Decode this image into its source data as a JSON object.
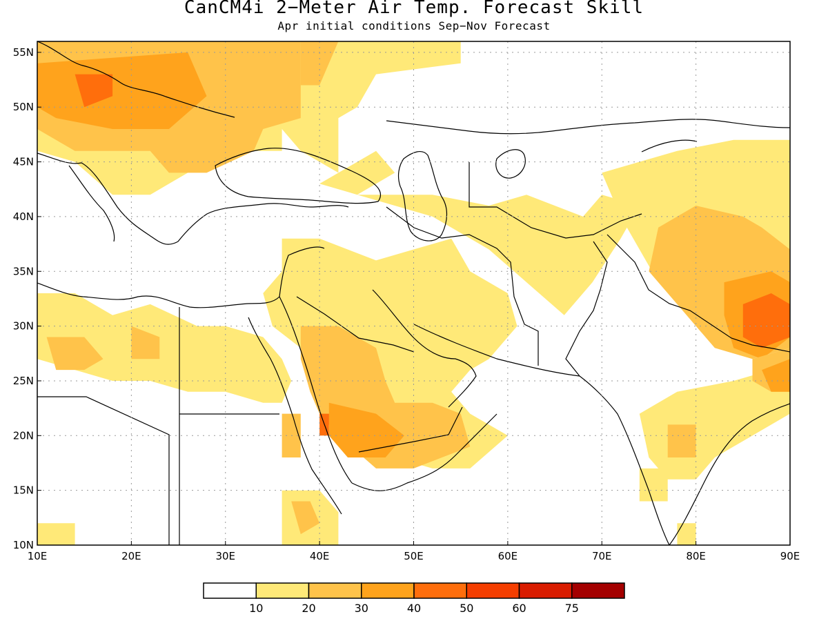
{
  "title": "CanCM4i 2−Meter Air Temp. Forecast Skill",
  "subtitle": "Apr initial conditions  Sep−Nov Forecast",
  "map": {
    "lon_range": [
      10,
      90
    ],
    "lat_range": [
      10,
      56
    ],
    "lon_ticks": [
      {
        "value": 10,
        "label": "10E"
      },
      {
        "value": 20,
        "label": "20E"
      },
      {
        "value": 30,
        "label": "30E"
      },
      {
        "value": 40,
        "label": "40E"
      },
      {
        "value": 50,
        "label": "50E"
      },
      {
        "value": 60,
        "label": "60E"
      },
      {
        "value": 70,
        "label": "70E"
      },
      {
        "value": 80,
        "label": "80E"
      },
      {
        "value": 90,
        "label": "90E"
      }
    ],
    "lat_ticks": [
      {
        "value": 10,
        "label": "10N"
      },
      {
        "value": 15,
        "label": "15N"
      },
      {
        "value": 20,
        "label": "20N"
      },
      {
        "value": 25,
        "label": "25N"
      },
      {
        "value": 30,
        "label": "30N"
      },
      {
        "value": 35,
        "label": "35N"
      },
      {
        "value": 40,
        "label": "40N"
      },
      {
        "value": 45,
        "label": "45N"
      },
      {
        "value": 50,
        "label": "50N"
      },
      {
        "value": 55,
        "label": "55N"
      }
    ],
    "colors": {
      "c10": "#ffe978",
      "c20": "#ffc34a",
      "c30": "#ffa31c",
      "c40": "#ff6e0c",
      "c50": "#f53e00",
      "c60": "#d91c00",
      "c75": "#a40000"
    },
    "skill_regions": [
      {
        "level": "c10",
        "points": [
          [
            10,
            56
          ],
          [
            33,
            56
          ],
          [
            33,
            48
          ],
          [
            36,
            48
          ],
          [
            36,
            46
          ],
          [
            28,
            46
          ],
          [
            26,
            44
          ],
          [
            22,
            42
          ],
          [
            18,
            42
          ],
          [
            14,
            45
          ],
          [
            10,
            46
          ]
        ]
      },
      {
        "level": "c10",
        "points": [
          [
            33,
            56
          ],
          [
            55,
            56
          ],
          [
            55,
            54
          ],
          [
            46,
            53
          ],
          [
            44,
            50
          ],
          [
            42,
            49
          ],
          [
            42,
            44
          ],
          [
            38,
            46
          ],
          [
            36,
            48
          ],
          [
            33,
            48
          ]
        ]
      },
      {
        "level": "c10",
        "points": [
          [
            46,
            46
          ],
          [
            48,
            44
          ],
          [
            44,
            42
          ],
          [
            40,
            43
          ]
        ]
      },
      {
        "level": "c20",
        "points": [
          [
            10,
            56
          ],
          [
            38,
            56
          ],
          [
            38,
            49
          ],
          [
            34,
            48
          ],
          [
            33,
            46
          ],
          [
            28,
            44
          ],
          [
            24,
            44
          ],
          [
            22,
            46
          ],
          [
            14,
            46
          ],
          [
            10,
            48
          ]
        ]
      },
      {
        "level": "c20",
        "points": [
          [
            38,
            56
          ],
          [
            42,
            56
          ],
          [
            40,
            52
          ],
          [
            38,
            52
          ]
        ]
      },
      {
        "level": "c30",
        "points": [
          [
            10,
            54
          ],
          [
            26,
            55
          ],
          [
            28,
            51
          ],
          [
            24,
            48
          ],
          [
            18,
            48
          ],
          [
            12,
            49
          ],
          [
            10,
            50
          ]
        ]
      },
      {
        "level": "c40",
        "points": [
          [
            14,
            53
          ],
          [
            18,
            53
          ],
          [
            18,
            51
          ],
          [
            15,
            50
          ]
        ]
      },
      {
        "level": "c10",
        "points": [
          [
            36,
            38
          ],
          [
            40,
            38
          ],
          [
            46,
            36
          ],
          [
            50,
            37
          ],
          [
            54,
            38
          ],
          [
            56,
            35
          ],
          [
            60,
            33
          ],
          [
            61,
            30
          ],
          [
            58,
            27
          ],
          [
            56,
            26
          ],
          [
            54,
            24
          ],
          [
            56,
            22
          ],
          [
            60,
            20
          ],
          [
            56,
            17
          ],
          [
            52,
            17
          ],
          [
            48,
            18
          ],
          [
            44,
            18
          ],
          [
            42,
            20
          ],
          [
            41,
            24
          ],
          [
            38,
            28
          ],
          [
            35,
            30
          ],
          [
            34,
            33
          ],
          [
            36,
            35
          ]
        ]
      },
      {
        "level": "c10",
        "points": [
          [
            44,
            42
          ],
          [
            52,
            42
          ],
          [
            58,
            41
          ],
          [
            62,
            42
          ],
          [
            68,
            40
          ],
          [
            70,
            42
          ],
          [
            74,
            41
          ],
          [
            72,
            38
          ],
          [
            69,
            34
          ],
          [
            66,
            31
          ],
          [
            62,
            34
          ],
          [
            58,
            37
          ],
          [
            52,
            40
          ]
        ]
      },
      {
        "level": "c10",
        "points": [
          [
            70,
            44
          ],
          [
            78,
            46
          ],
          [
            84,
            47
          ],
          [
            90,
            47
          ],
          [
            90,
            35
          ],
          [
            86,
            34
          ],
          [
            82,
            32
          ],
          [
            80,
            33
          ],
          [
            76,
            34
          ],
          [
            74,
            37
          ],
          [
            72,
            40
          ]
        ]
      },
      {
        "level": "c20",
        "points": [
          [
            38,
            30
          ],
          [
            42,
            30
          ],
          [
            46,
            28
          ],
          [
            47,
            25
          ],
          [
            48,
            23
          ],
          [
            52,
            23
          ],
          [
            55,
            22
          ],
          [
            56,
            19
          ],
          [
            50,
            17
          ],
          [
            46,
            17
          ],
          [
            42,
            20
          ],
          [
            40,
            22
          ],
          [
            39,
            24
          ],
          [
            38,
            27
          ]
        ]
      },
      {
        "level": "c20",
        "points": [
          [
            76,
            39
          ],
          [
            80,
            41
          ],
          [
            85,
            40
          ],
          [
            87,
            39
          ],
          [
            90,
            37
          ],
          [
            90,
            28
          ],
          [
            86,
            27
          ],
          [
            82,
            28
          ],
          [
            78,
            32
          ],
          [
            75,
            35
          ]
        ]
      },
      {
        "level": "c30",
        "points": [
          [
            83,
            34
          ],
          [
            88,
            35
          ],
          [
            90,
            34
          ],
          [
            90,
            29
          ],
          [
            87,
            27
          ],
          [
            84,
            28
          ],
          [
            83,
            31
          ]
        ]
      },
      {
        "level": "c30",
        "points": [
          [
            41,
            23
          ],
          [
            46,
            22
          ],
          [
            49,
            20
          ],
          [
            47,
            18
          ],
          [
            43,
            18
          ],
          [
            41,
            20
          ]
        ]
      },
      {
        "level": "c40",
        "points": [
          [
            85,
            32
          ],
          [
            88,
            33
          ],
          [
            90,
            32
          ],
          [
            90,
            29
          ],
          [
            87,
            28
          ],
          [
            85,
            29
          ]
        ]
      },
      {
        "level": "c40",
        "points": [
          [
            40,
            22
          ],
          [
            41,
            22
          ],
          [
            41,
            20
          ],
          [
            40,
            20
          ]
        ]
      },
      {
        "level": "c10",
        "points": [
          [
            10,
            33
          ],
          [
            14,
            33
          ],
          [
            18,
            31
          ],
          [
            22,
            32
          ],
          [
            27,
            30
          ],
          [
            30,
            30
          ],
          [
            34,
            29
          ],
          [
            36,
            27
          ],
          [
            37,
            25
          ],
          [
            36,
            23
          ],
          [
            34,
            23
          ],
          [
            30,
            24
          ],
          [
            26,
            24
          ],
          [
            22,
            25
          ],
          [
            18,
            25
          ],
          [
            14,
            26
          ],
          [
            10,
            27
          ]
        ]
      },
      {
        "level": "c20",
        "points": [
          [
            11,
            29
          ],
          [
            15,
            29
          ],
          [
            17,
            27
          ],
          [
            15,
            26
          ],
          [
            12,
            26
          ]
        ]
      },
      {
        "level": "c20",
        "points": [
          [
            20,
            30
          ],
          [
            23,
            29
          ],
          [
            23,
            27
          ],
          [
            20,
            27
          ]
        ]
      },
      {
        "level": "c20",
        "points": [
          [
            36,
            22
          ],
          [
            38,
            22
          ],
          [
            38,
            18
          ],
          [
            36,
            18
          ]
        ]
      },
      {
        "level": "c10",
        "points": [
          [
            36,
            15
          ],
          [
            40,
            15
          ],
          [
            42,
            13
          ],
          [
            42,
            10
          ],
          [
            36,
            10
          ]
        ]
      },
      {
        "level": "c20",
        "points": [
          [
            37,
            14
          ],
          [
            39,
            14
          ],
          [
            40,
            12
          ],
          [
            38,
            11
          ]
        ]
      },
      {
        "level": "c10",
        "points": [
          [
            10,
            12
          ],
          [
            14,
            12
          ],
          [
            14,
            10
          ],
          [
            10,
            10
          ]
        ]
      },
      {
        "level": "c10",
        "points": [
          [
            74,
            22
          ],
          [
            78,
            24
          ],
          [
            84,
            25
          ],
          [
            88,
            26
          ],
          [
            90,
            25
          ],
          [
            90,
            22
          ],
          [
            86,
            20
          ],
          [
            82,
            18
          ],
          [
            80,
            16
          ],
          [
            77,
            16
          ],
          [
            75,
            18
          ]
        ]
      },
      {
        "level": "c20",
        "points": [
          [
            86,
            27
          ],
          [
            90,
            28
          ],
          [
            90,
            24
          ],
          [
            88,
            24
          ],
          [
            86,
            25
          ]
        ]
      },
      {
        "level": "c20",
        "points": [
          [
            77,
            21
          ],
          [
            80,
            21
          ],
          [
            80,
            18
          ],
          [
            77,
            18
          ]
        ]
      },
      {
        "level": "c30",
        "points": [
          [
            87,
            26
          ],
          [
            90,
            27
          ],
          [
            90,
            24
          ],
          [
            88,
            24
          ]
        ]
      },
      {
        "level": "c10",
        "points": [
          [
            74,
            17
          ],
          [
            77,
            17
          ],
          [
            77,
            14
          ],
          [
            74,
            14
          ]
        ]
      },
      {
        "level": "c10",
        "points": [
          [
            78,
            12
          ],
          [
            80,
            12
          ],
          [
            80,
            10
          ],
          [
            78,
            10
          ]
        ]
      }
    ],
    "colorbar": {
      "colors": [
        "#ffffff",
        "#ffe978",
        "#ffc34a",
        "#ffa31c",
        "#ff6e0c",
        "#f53e00",
        "#d91c00",
        "#a40000"
      ],
      "labels": [
        "10",
        "20",
        "30",
        "40",
        "50",
        "60",
        "75"
      ]
    }
  }
}
